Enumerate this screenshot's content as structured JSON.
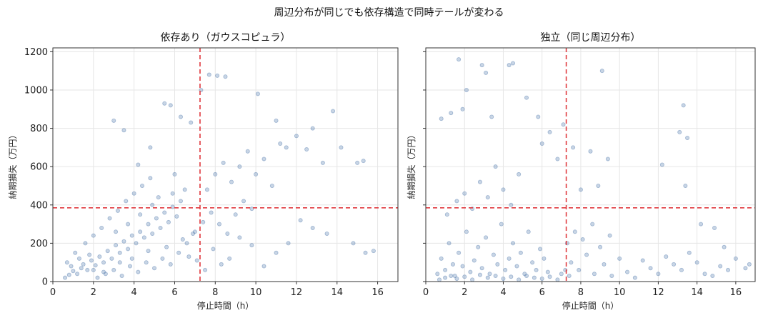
{
  "figure_title": "周辺分布が同じでも依存構造で同時テールが変わる",
  "colors": {
    "points": "#4a73a8",
    "threshold": "#e0393e",
    "grid": "#e6e6e6",
    "axis": "#333333"
  },
  "chart_data": [
    {
      "type": "scatter",
      "title": "依存あり（ガウスコピュラ）",
      "xlabel": "停止時間（h）",
      "ylabel": "納期損失（万円）",
      "xlim": [
        0,
        17
      ],
      "ylim": [
        0,
        1220
      ],
      "xticks": [
        0,
        2,
        4,
        6,
        8,
        10,
        12,
        14,
        16
      ],
      "yticks": [
        0,
        200,
        400,
        600,
        800,
        1000,
        1200
      ],
      "grid": true,
      "threshold_x": 7.25,
      "threshold_y": 385,
      "points_sampled": true,
      "points": [
        [
          0.6,
          20
        ],
        [
          0.8,
          35
        ],
        [
          1.0,
          55
        ],
        [
          1.2,
          40
        ],
        [
          1.4,
          70
        ],
        [
          1.5,
          90
        ],
        [
          1.7,
          60
        ],
        [
          1.9,
          110
        ],
        [
          2.1,
          85
        ],
        [
          2.3,
          130
        ],
        [
          2.5,
          100
        ],
        [
          2.7,
          160
        ],
        [
          2.9,
          120
        ],
        [
          3.1,
          190
        ],
        [
          3.3,
          150
        ],
        [
          3.5,
          210
        ],
        [
          3.7,
          170
        ],
        [
          3.9,
          240
        ],
        [
          4.1,
          200
        ],
        [
          4.3,
          260
        ],
        [
          4.5,
          230
        ],
        [
          4.7,
          300
        ],
        [
          4.9,
          250
        ],
        [
          5.1,
          330
        ],
        [
          5.3,
          280
        ],
        [
          5.5,
          360
        ],
        [
          5.7,
          310
        ],
        [
          5.9,
          390
        ],
        [
          6.1,
          340
        ],
        [
          6.3,
          420
        ],
        [
          1.1,
          150
        ],
        [
          1.6,
          200
        ],
        [
          2.0,
          240
        ],
        [
          2.4,
          280
        ],
        [
          2.8,
          330
        ],
        [
          3.2,
          370
        ],
        [
          3.6,
          420
        ],
        [
          4.0,
          460
        ],
        [
          4.4,
          500
        ],
        [
          4.8,
          540
        ],
        [
          2.2,
          20
        ],
        [
          2.6,
          40
        ],
        [
          3.0,
          60
        ],
        [
          3.4,
          30
        ],
        [
          3.8,
          80
        ],
        [
          4.2,
          50
        ],
        [
          4.6,
          100
        ],
        [
          5.0,
          70
        ],
        [
          5.4,
          120
        ],
        [
          5.8,
          90
        ],
        [
          6.2,
          150
        ],
        [
          6.6,
          200
        ],
        [
          7.0,
          260
        ],
        [
          7.4,
          310
        ],
        [
          7.8,
          360
        ],
        [
          8.2,
          300
        ],
        [
          8.6,
          250
        ],
        [
          9.0,
          350
        ],
        [
          9.4,
          420
        ],
        [
          9.8,
          380
        ],
        [
          7.6,
          480
        ],
        [
          8.0,
          560
        ],
        [
          8.4,
          620
        ],
        [
          8.8,
          520
        ],
        [
          9.2,
          600
        ],
        [
          9.6,
          680
        ],
        [
          10.0,
          560
        ],
        [
          10.4,
          640
        ],
        [
          10.8,
          500
        ],
        [
          11.2,
          720
        ],
        [
          3.0,
          840
        ],
        [
          3.5,
          790
        ],
        [
          4.2,
          610
        ],
        [
          4.8,
          700
        ],
        [
          5.5,
          930
        ],
        [
          5.8,
          920
        ],
        [
          6.3,
          860
        ],
        [
          6.8,
          830
        ],
        [
          7.3,
          1000
        ],
        [
          7.7,
          1080
        ],
        [
          8.1,
          1075
        ],
        [
          8.5,
          1070
        ],
        [
          10.1,
          980
        ],
        [
          11.0,
          840
        ],
        [
          11.5,
          700
        ],
        [
          12.0,
          760
        ],
        [
          12.5,
          690
        ],
        [
          12.8,
          800
        ],
        [
          13.3,
          620
        ],
        [
          13.8,
          890
        ],
        [
          14.2,
          700
        ],
        [
          15.0,
          620
        ],
        [
          15.3,
          630
        ],
        [
          15.4,
          150
        ],
        [
          15.8,
          160
        ],
        [
          14.8,
          200
        ],
        [
          13.5,
          250
        ],
        [
          12.8,
          280
        ],
        [
          12.2,
          320
        ],
        [
          11.6,
          200
        ],
        [
          11.0,
          150
        ],
        [
          10.4,
          80
        ],
        [
          9.8,
          190
        ],
        [
          9.2,
          230
        ],
        [
          8.7,
          120
        ],
        [
          8.3,
          90
        ],
        [
          7.9,
          170
        ],
        [
          7.5,
          60
        ],
        [
          7.1,
          110
        ],
        [
          6.7,
          130
        ],
        [
          0.7,
          100
        ],
        [
          0.9,
          80
        ],
        [
          1.3,
          120
        ],
        [
          1.8,
          140
        ],
        [
          2.0,
          60
        ],
        [
          2.5,
          50
        ],
        [
          3.3,
          100
        ],
        [
          3.9,
          120
        ],
        [
          4.7,
          160
        ],
        [
          5.6,
          180
        ],
        [
          6.4,
          220
        ],
        [
          6.9,
          250
        ],
        [
          5.2,
          440
        ],
        [
          5.9,
          460
        ],
        [
          6.5,
          480
        ],
        [
          6.0,
          560
        ],
        [
          4.9,
          400
        ],
        [
          4.3,
          350
        ],
        [
          3.7,
          300
        ],
        [
          3.1,
          260
        ]
      ]
    },
    {
      "type": "scatter",
      "title": "独立（同じ周辺分布）",
      "xlabel": "停止時間（h）",
      "ylabel": "納期損失（万円）",
      "xlim": [
        0,
        17
      ],
      "ylim": [
        0,
        1220
      ],
      "xticks": [
        0,
        2,
        4,
        6,
        8,
        10,
        12,
        14,
        16
      ],
      "yticks": [
        0,
        200,
        400,
        600,
        800,
        1000,
        1200
      ],
      "grid": true,
      "threshold_x": 7.25,
      "threshold_y": 385,
      "points_sampled": true,
      "points": [
        [
          0.6,
          40
        ],
        [
          0.8,
          120
        ],
        [
          1.0,
          60
        ],
        [
          1.2,
          200
        ],
        [
          1.4,
          90
        ],
        [
          1.5,
          30
        ],
        [
          1.7,
          150
        ],
        [
          1.9,
          80
        ],
        [
          2.1,
          260
        ],
        [
          2.3,
          50
        ],
        [
          2.5,
          110
        ],
        [
          2.7,
          180
        ],
        [
          2.9,
          70
        ],
        [
          3.1,
          230
        ],
        [
          3.3,
          40
        ],
        [
          3.5,
          140
        ],
        [
          3.7,
          90
        ],
        [
          3.9,
          300
        ],
        [
          4.1,
          60
        ],
        [
          4.3,
          120
        ],
        [
          4.5,
          200
        ],
        [
          4.7,
          80
        ],
        [
          4.9,
          150
        ],
        [
          5.1,
          40
        ],
        [
          5.3,
          260
        ],
        [
          5.5,
          100
        ],
        [
          5.7,
          60
        ],
        [
          5.9,
          170
        ],
        [
          6.1,
          120
        ],
        [
          6.3,
          50
        ],
        [
          1.1,
          350
        ],
        [
          1.6,
          420
        ],
        [
          2.0,
          460
        ],
        [
          2.4,
          380
        ],
        [
          2.8,
          520
        ],
        [
          3.2,
          440
        ],
        [
          3.6,
          600
        ],
        [
          4.0,
          480
        ],
        [
          4.4,
          400
        ],
        [
          4.8,
          560
        ],
        [
          0.8,
          850
        ],
        [
          1.3,
          880
        ],
        [
          1.7,
          1160
        ],
        [
          1.9,
          900
        ],
        [
          2.1,
          1000
        ],
        [
          2.9,
          1130
        ],
        [
          3.1,
          1090
        ],
        [
          3.4,
          860
        ],
        [
          4.3,
          1130
        ],
        [
          4.5,
          1140
        ],
        [
          5.2,
          960
        ],
        [
          5.8,
          860
        ],
        [
          6.0,
          720
        ],
        [
          6.4,
          780
        ],
        [
          6.8,
          640
        ],
        [
          7.1,
          820
        ],
        [
          7.6,
          700
        ],
        [
          8.0,
          480
        ],
        [
          8.5,
          680
        ],
        [
          8.9,
          500
        ],
        [
          9.1,
          1100
        ],
        [
          9.4,
          640
        ],
        [
          13.1,
          780
        ],
        [
          13.3,
          920
        ],
        [
          13.5,
          750
        ],
        [
          12.2,
          610
        ],
        [
          13.4,
          500
        ],
        [
          14.2,
          300
        ],
        [
          14.9,
          280
        ],
        [
          15.4,
          180
        ],
        [
          7.5,
          100
        ],
        [
          7.9,
          60
        ],
        [
          8.3,
          140
        ],
        [
          8.7,
          40
        ],
        [
          9.2,
          90
        ],
        [
          9.6,
          30
        ],
        [
          10.0,
          120
        ],
        [
          10.4,
          50
        ],
        [
          10.8,
          20
        ],
        [
          11.2,
          110
        ],
        [
          11.6,
          70
        ],
        [
          12.0,
          40
        ],
        [
          12.4,
          130
        ],
        [
          12.8,
          90
        ],
        [
          13.2,
          60
        ],
        [
          13.6,
          150
        ],
        [
          14.0,
          100
        ],
        [
          14.4,
          40
        ],
        [
          14.8,
          30
        ],
        [
          15.2,
          80
        ],
        [
          15.6,
          60
        ],
        [
          16.0,
          120
        ],
        [
          16.5,
          70
        ],
        [
          16.7,
          90
        ],
        [
          7.3,
          200
        ],
        [
          7.7,
          260
        ],
        [
          8.1,
          220
        ],
        [
          8.6,
          300
        ],
        [
          9.0,
          180
        ],
        [
          9.5,
          240
        ],
        [
          0.7,
          10
        ],
        [
          1.0,
          20
        ],
        [
          1.3,
          30
        ],
        [
          1.6,
          15
        ],
        [
          2.0,
          25
        ],
        [
          2.4,
          10
        ],
        [
          2.8,
          35
        ],
        [
          3.2,
          20
        ],
        [
          3.6,
          30
        ],
        [
          4.0,
          15
        ],
        [
          4.4,
          25
        ],
        [
          4.8,
          10
        ],
        [
          5.2,
          30
        ],
        [
          5.6,
          20
        ],
        [
          6.0,
          15
        ],
        [
          6.4,
          25
        ],
        [
          6.8,
          10
        ],
        [
          7.0,
          40
        ],
        [
          7.2,
          60
        ],
        [
          7.4,
          30
        ]
      ]
    }
  ]
}
